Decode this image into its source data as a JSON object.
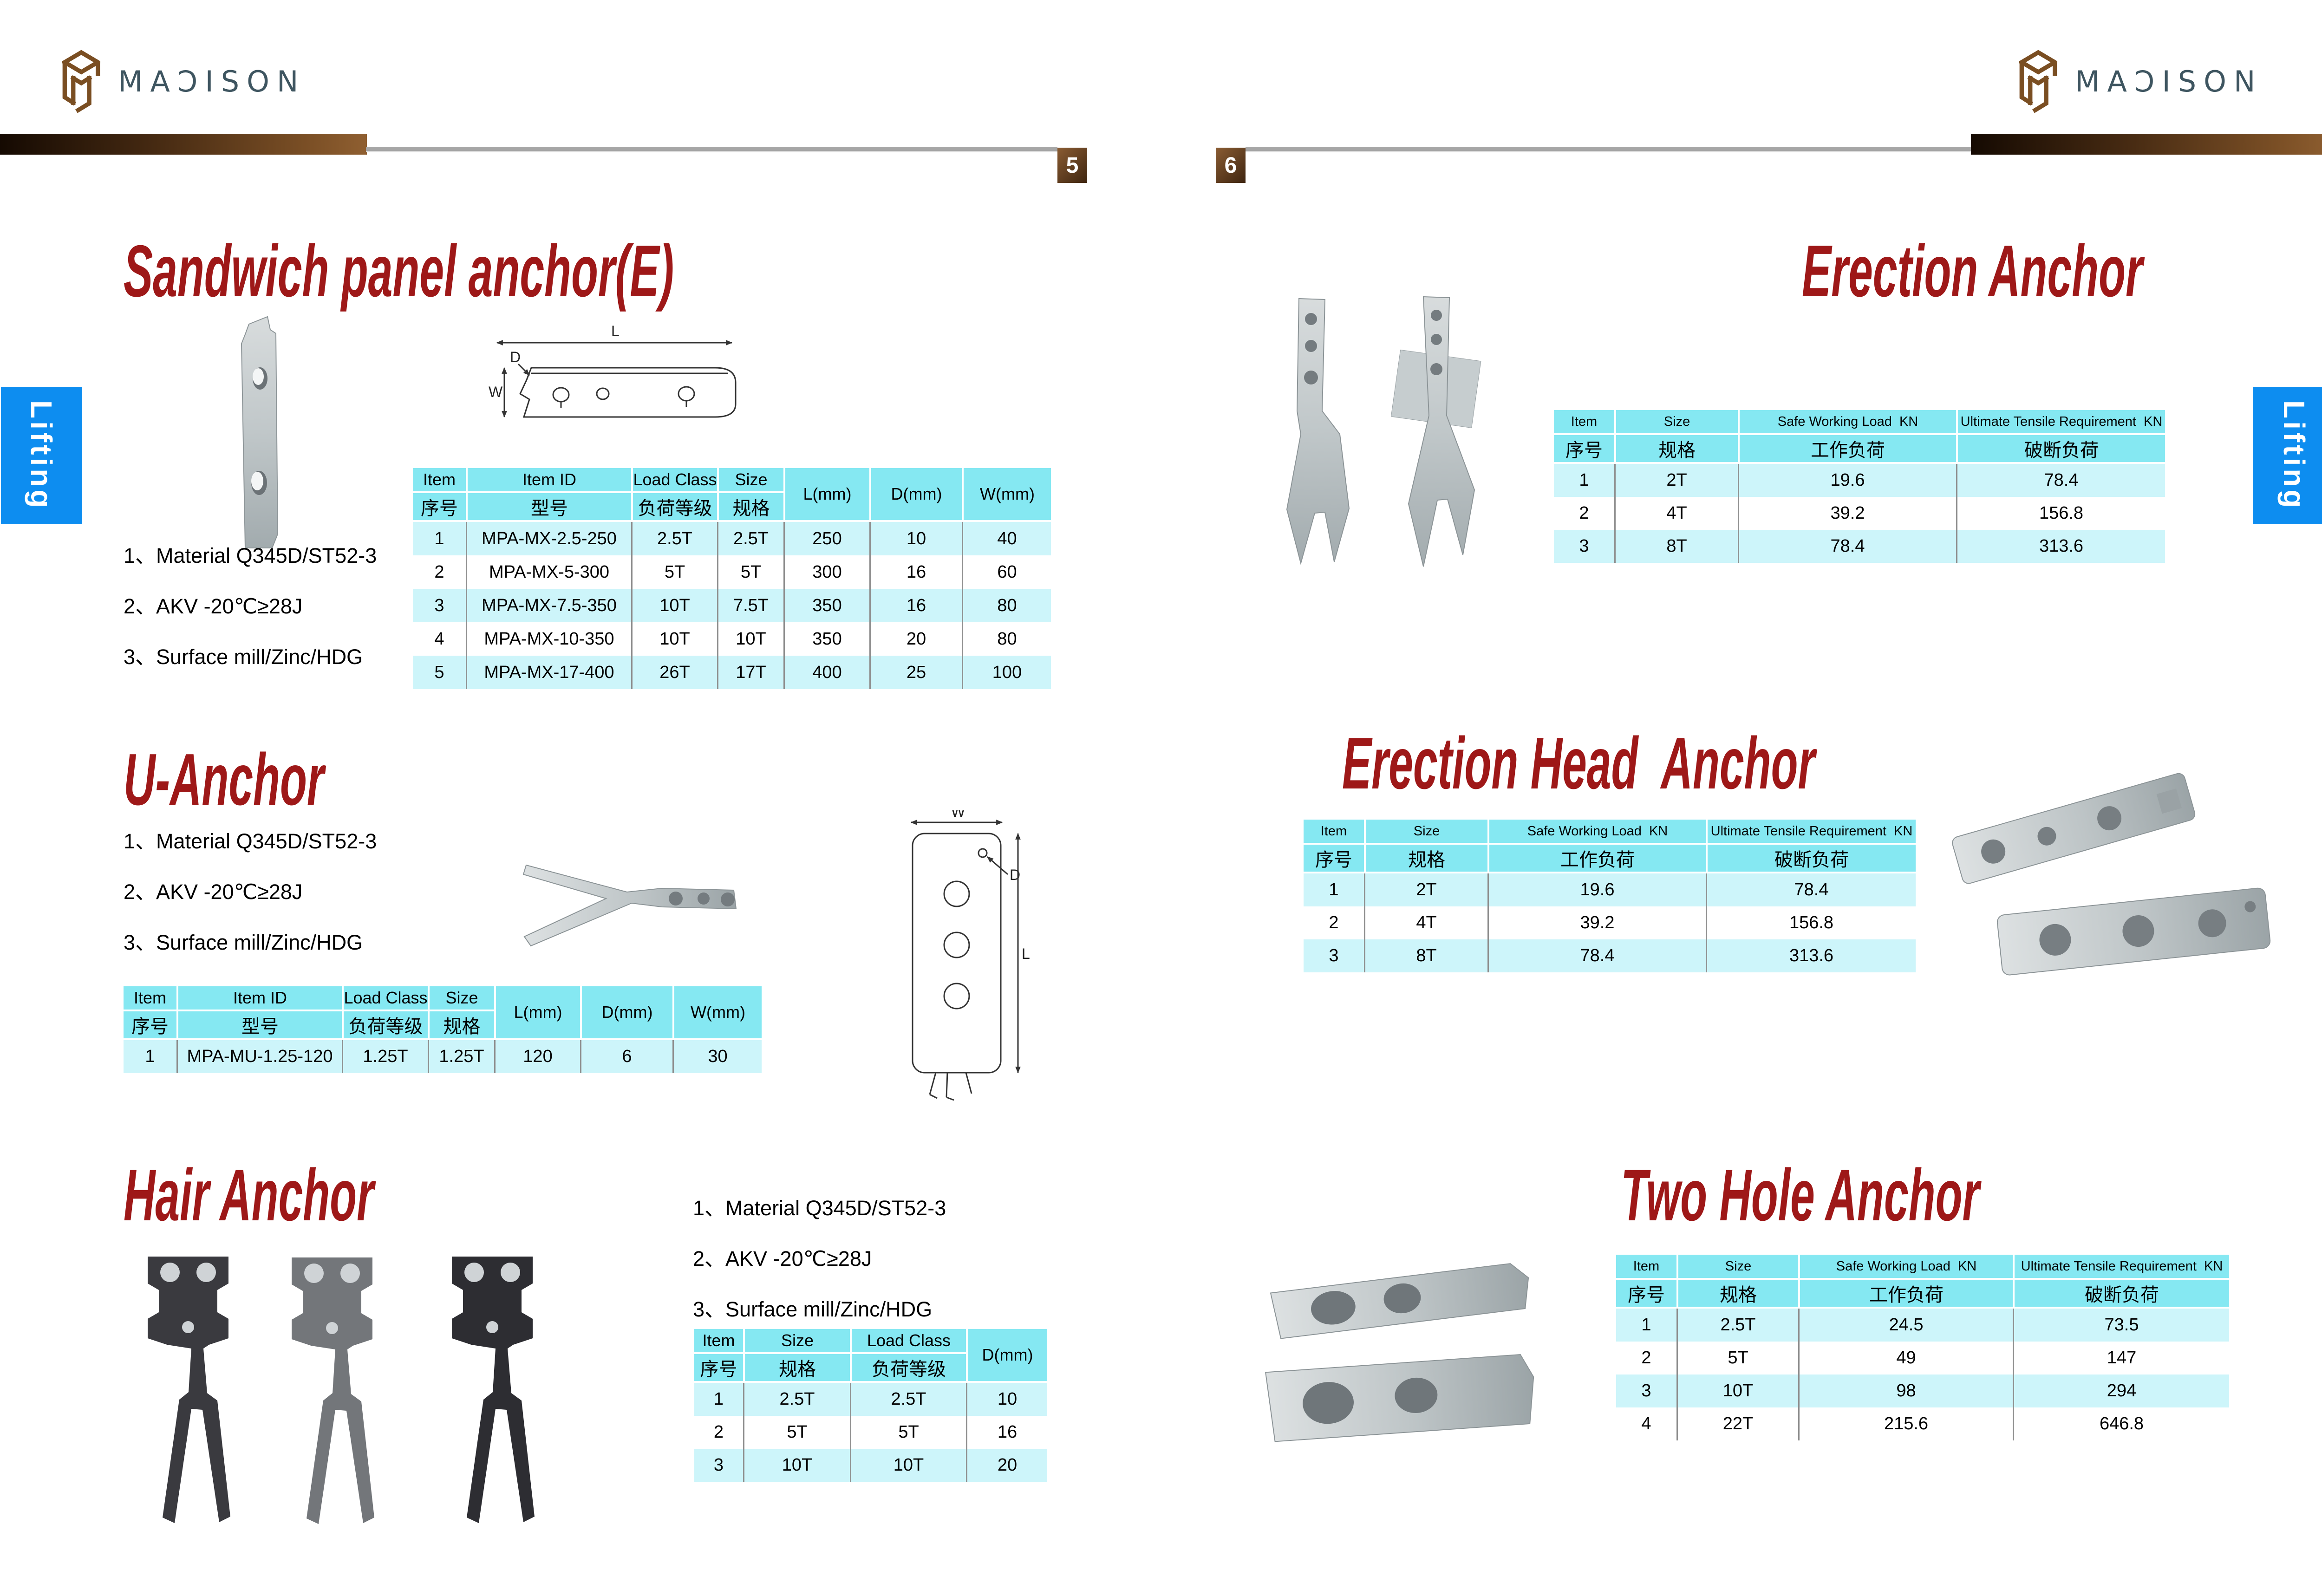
{
  "brand": {
    "logo_text": "MAƆISON"
  },
  "side_tab": {
    "label": "Lifting"
  },
  "pages": {
    "left_number": "5",
    "right_number": "6"
  },
  "colors": {
    "heading_red": "#9E1818",
    "table_header_cyan": "#85E8F2",
    "table_row_cyan": "#CDF5FA",
    "tab_blue": "#0D8DF0",
    "bar_brown_dark": "#150A02",
    "bar_brown_light": "#8F5F31",
    "logo_text_color": "#3E5560"
  },
  "notes": [
    "1、Material Q345D/ST52-3",
    "2、AKV -20℃≥28J",
    "3、Surface mill/Zinc/HDG"
  ],
  "th": {
    "item": "Item",
    "item_zh": "序号",
    "id": "Item ID",
    "id_zh": "型号",
    "load": "Load Class",
    "load_zh": "负荷等级",
    "size": "Size",
    "size_zh": "规格",
    "l": "L(mm)",
    "d": "D(mm)",
    "w": "W(mm)",
    "swl": "Safe Working Load  KN",
    "swl_zh": "工作负荷",
    "utr": "Ultimate Tensile Requirement  KN",
    "utr_zh": "破断负荷"
  },
  "dim": {
    "l": "L",
    "d": "D",
    "w": "W"
  },
  "sections": {
    "sandwich": {
      "title": "Sandwich panel anchor(E)",
      "rows": [
        [
          "1",
          "MPA-MX-2.5-250",
          "2.5T",
          "2.5T",
          "250",
          "10",
          "40"
        ],
        [
          "2",
          "MPA-MX-5-300",
          "5T",
          "5T",
          "300",
          "16",
          "60"
        ],
        [
          "3",
          "MPA-MX-7.5-350",
          "10T",
          "7.5T",
          "350",
          "16",
          "80"
        ],
        [
          "4",
          "MPA-MX-10-350",
          "10T",
          "10T",
          "350",
          "20",
          "80"
        ],
        [
          "5",
          "MPA-MX-17-400",
          "26T",
          "17T",
          "400",
          "25",
          "100"
        ]
      ]
    },
    "u_anchor": {
      "title": "U-Anchor",
      "rows": [
        [
          "1",
          "MPA-MU-1.25-120",
          "1.25T",
          "1.25T",
          "120",
          "6",
          "30"
        ]
      ]
    },
    "hair_anchor": {
      "title": "Hair Anchor",
      "rows": [
        [
          "1",
          "2.5T",
          "2.5T",
          "10"
        ],
        [
          "2",
          "5T",
          "5T",
          "16"
        ],
        [
          "3",
          "10T",
          "10T",
          "20"
        ]
      ]
    },
    "erection_anchor": {
      "title": "Erection Anchor",
      "rows": [
        [
          "1",
          "2T",
          "19.6",
          "78.4"
        ],
        [
          "2",
          "4T",
          "39.2",
          "156.8"
        ],
        [
          "3",
          "8T",
          "78.4",
          "313.6"
        ]
      ]
    },
    "erection_head_anchor": {
      "title": "Erection Head  Anchor",
      "rows": [
        [
          "1",
          "2T",
          "19.6",
          "78.4"
        ],
        [
          "2",
          "4T",
          "39.2",
          "156.8"
        ],
        [
          "3",
          "8T",
          "78.4",
          "313.6"
        ]
      ]
    },
    "two_hole_anchor": {
      "title": "Two Hole Anchor",
      "rows": [
        [
          "1",
          "2.5T",
          "24.5",
          "73.5"
        ],
        [
          "2",
          "5T",
          "49",
          "147"
        ],
        [
          "3",
          "10T",
          "98",
          "294"
        ],
        [
          "4",
          "22T",
          "215.6",
          "646.8"
        ]
      ]
    }
  }
}
